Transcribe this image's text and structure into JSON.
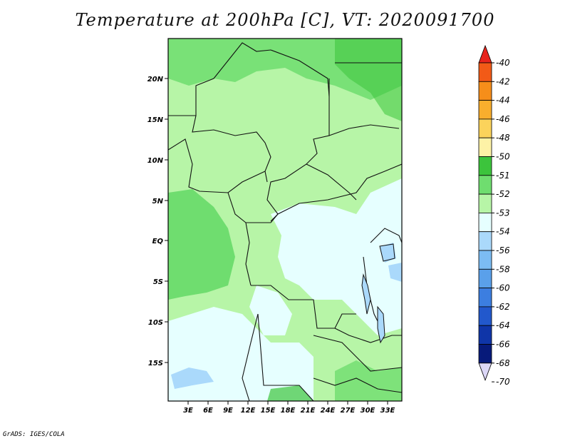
{
  "title": "Temperature at 200hPa [C], VT: 2020091700",
  "credit": "GrADS: IGES/COLA",
  "map": {
    "lon_ticks": [
      "3E",
      "6E",
      "9E",
      "12E",
      "15E",
      "18E",
      "21E",
      "24E",
      "27E",
      "30E",
      "33E"
    ],
    "lat_ticks": [
      "20N",
      "15N",
      "10N",
      "5N",
      "EQ",
      "5S",
      "10S",
      "15S"
    ]
  },
  "colorbar": {
    "top_arrow_color": "#e8241d",
    "bottom_arrow_color": "#dcd7f7",
    "colors": [
      "#e8241d",
      "#f25a17",
      "#f68e1a",
      "#f9ae2d",
      "#fbd35b",
      "#fdf2a6",
      "#3cc43c",
      "#6fdd6f",
      "#b7f5a7",
      "#e6ffff",
      "#aad9fb",
      "#7cbcf3",
      "#5aa0ea",
      "#3c7ee0",
      "#2258cc",
      "#0f35a8",
      "#071a7a"
    ],
    "labels": [
      "-40",
      "-42",
      "-44",
      "-46",
      "-48",
      "-50",
      "-51",
      "-52",
      "-53",
      "-54",
      "-56",
      "-58",
      "-60",
      "-62",
      "-64",
      "-66",
      "-68",
      "-70"
    ]
  }
}
